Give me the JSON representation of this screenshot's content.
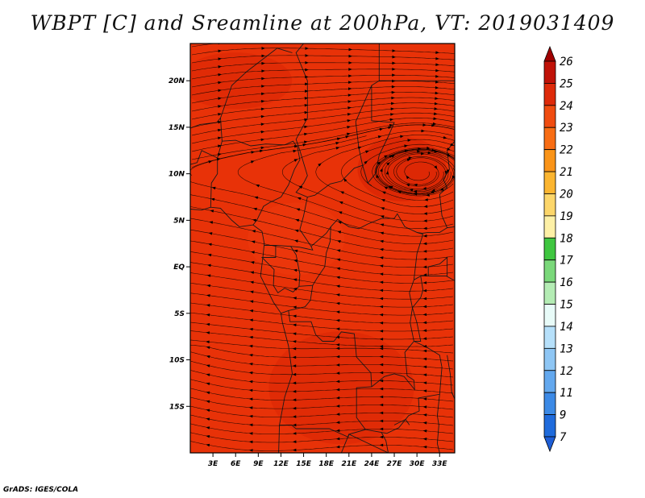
{
  "title": "WBPT [C] and Sreamline at 200hPa, VT: 2019031409",
  "footer": "GrADS: IGES/COLA",
  "colors": {
    "field_base": "#e83208",
    "field_dark": "#d82404",
    "field_light": "#f04010",
    "streamline": "#000000",
    "border": "#1a1a1a"
  },
  "map": {
    "lon_range": [
      0,
      35
    ],
    "lat_range": [
      -20,
      24
    ],
    "x_ticks": [
      "3E",
      "6E",
      "9E",
      "12E",
      "15E",
      "18E",
      "21E",
      "24E",
      "27E",
      "30E",
      "33E"
    ],
    "y_ticks": [
      "20N",
      "15N",
      "10N",
      "5N",
      "EQ",
      "5S",
      "10S",
      "15S"
    ]
  },
  "colorbar": {
    "labels": [
      "26",
      "25",
      "24",
      "23",
      "22",
      "21",
      "20",
      "19",
      "18",
      "17",
      "16",
      "15",
      "14",
      "13",
      "12",
      "11",
      "9",
      "7"
    ],
    "colors": [
      "#a00000",
      "#c01208",
      "#de2a0a",
      "#f04c10",
      "#f86d14",
      "#fa9418",
      "#fbb530",
      "#fcd66a",
      "#fdf0a6",
      "#3fc640",
      "#7ad87a",
      "#b4ecb4",
      "#e8fbf8",
      "#b6e0fa",
      "#8ec6f4",
      "#63a8ee",
      "#3c8ae6",
      "#1f6bdc",
      "#1e5ed6"
    ]
  }
}
